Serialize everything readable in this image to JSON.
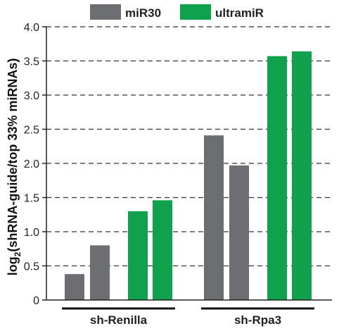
{
  "chart_data": {
    "type": "bar",
    "title": "",
    "ylabel_main": "log",
    "ylabel_sub": "2",
    "ylabel_rest": "(shRNA-guide/top 33% miRNAs)",
    "ylim": [
      0,
      4.0
    ],
    "yticks": [
      "0",
      "0.5",
      "1.0",
      "1.5",
      "2.0",
      "2.5",
      "3.0",
      "3.5",
      "4.0"
    ],
    "grid": "dashed horizontal",
    "legend_position": "top",
    "groups": [
      {
        "label": "sh-Renilla",
        "bars": [
          {
            "series": "miR30",
            "value": 0.38
          },
          {
            "series": "miR30",
            "value": 0.8
          },
          {
            "series": "ultramiR",
            "value": 1.3
          },
          {
            "series": "ultramiR",
            "value": 1.46
          }
        ]
      },
      {
        "label": "sh-Rpa3",
        "bars": [
          {
            "series": "miR30",
            "value": 2.41
          },
          {
            "series": "miR30",
            "value": 1.97
          },
          {
            "series": "ultramiR",
            "value": 3.57
          },
          {
            "series": "ultramiR",
            "value": 3.64
          }
        ]
      }
    ],
    "series": [
      {
        "name": "miR30",
        "color": "#6d6e71"
      },
      {
        "name": "ultramiR",
        "color": "#0fa14b"
      }
    ]
  }
}
